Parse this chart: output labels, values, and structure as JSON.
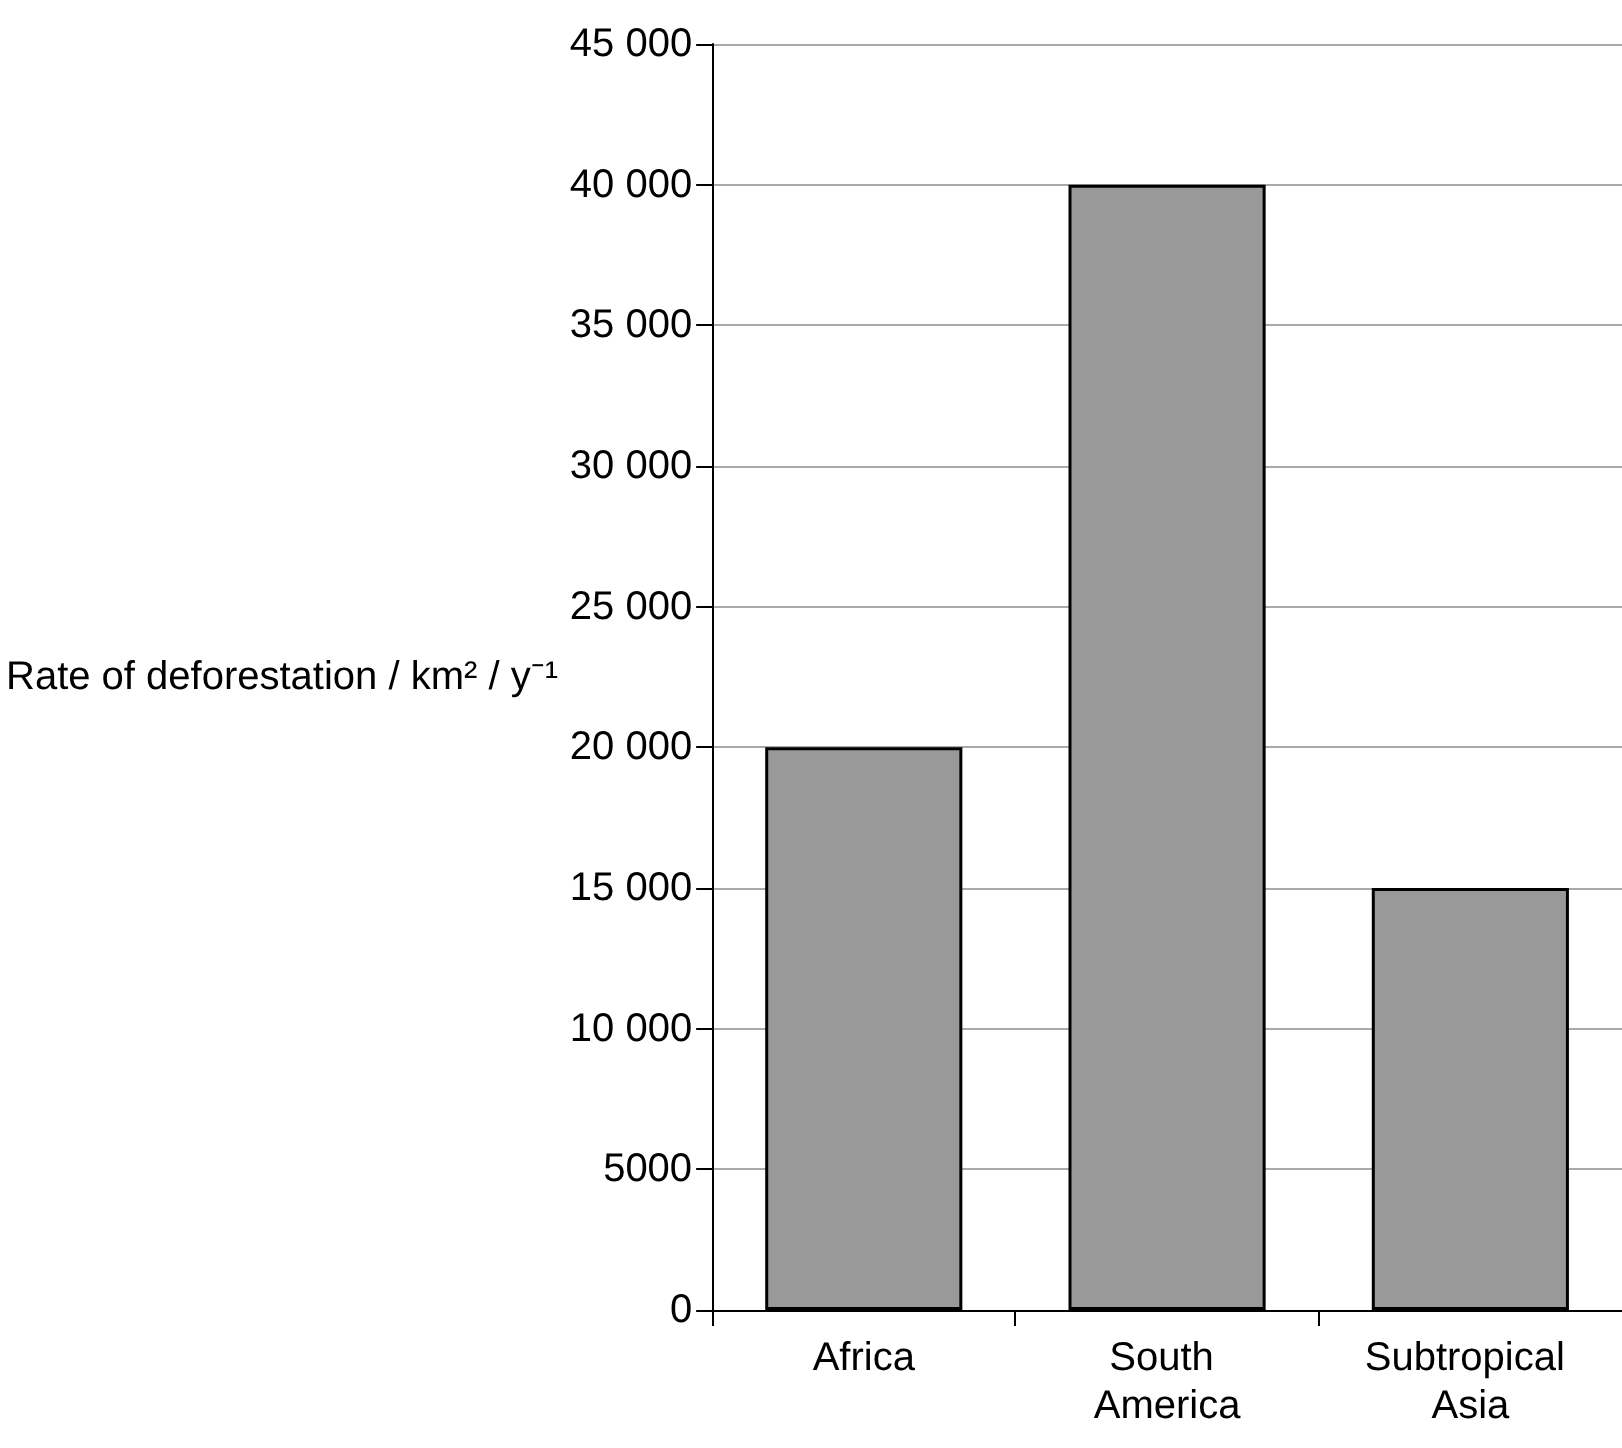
{
  "chart_data": {
    "type": "bar",
    "ylabel": "Rate of deforestation / km² / y⁻¹",
    "categories": [
      "Africa",
      "South America",
      "Subtropical Asia"
    ],
    "values": [
      20000,
      40000,
      15000
    ],
    "color": "#999999",
    "ylim": [
      0,
      45000
    ],
    "yticks": [
      0,
      5000,
      {
        "value": 10000,
        "label": "10 000"
      },
      {
        "value": 15000,
        "label": "15 000"
      },
      {
        "value": 20000,
        "label": "20 000"
      },
      {
        "value": 25000,
        "label": "25 000"
      },
      {
        "value": 30000,
        "label": "30 000"
      },
      {
        "value": 35000,
        "label": "35 000"
      },
      {
        "value": 40000,
        "label": "40 000"
      },
      {
        "value": 45000,
        "label": "45 000"
      }
    ],
    "grid": "y"
  }
}
